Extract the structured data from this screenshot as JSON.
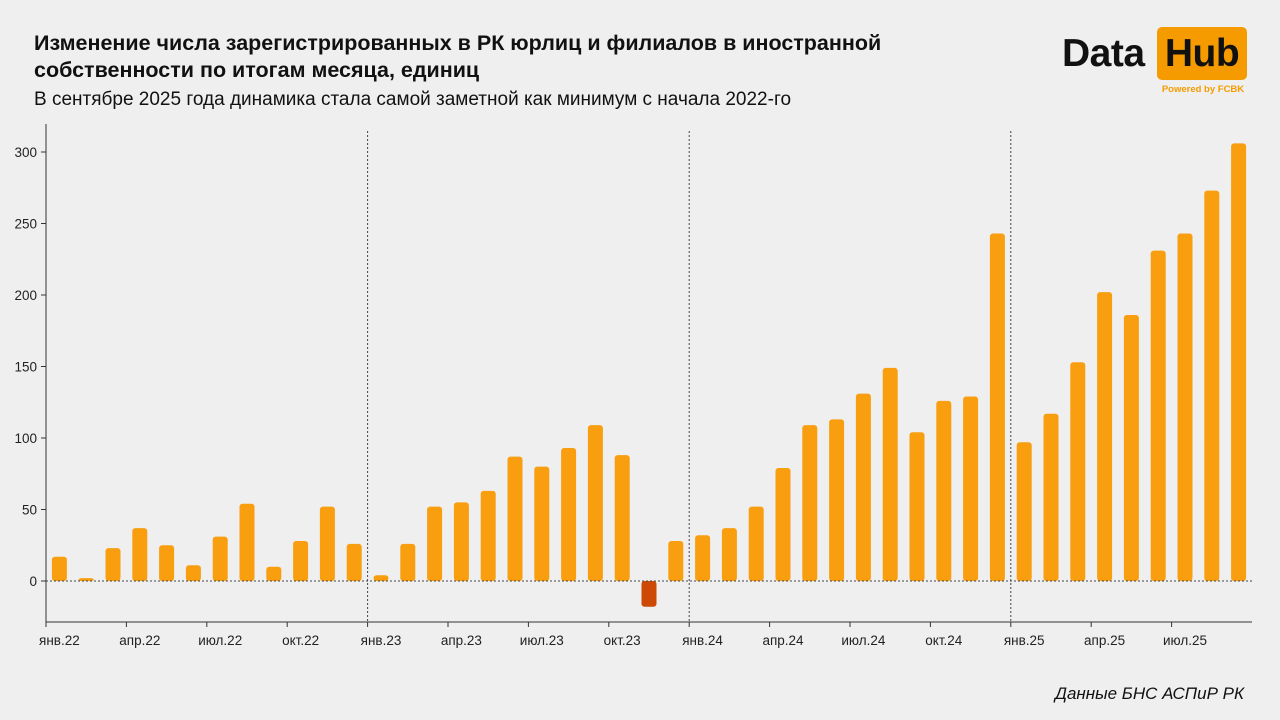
{
  "header": {
    "title": "Изменение числа зарегистрированных в РК юрлиц и филиалов в иностранной собственности по итогам месяца, единиц",
    "subtitle": "В сентябре 2025 года динамика стала самой заметной как минимум с начала 2022-го"
  },
  "logo": {
    "word1": "Data",
    "word2": "Hub",
    "powered": "Powered by FCBK"
  },
  "source": "Данные БНС АСПиР РК",
  "colors": {
    "positive": "#f89e0f",
    "negative": "#cc4a06",
    "background": "#efefef",
    "accent": "#f59b00"
  },
  "chart_data": {
    "type": "bar",
    "title": "Изменение числа зарегистрированных в РК юрлиц и филиалов в иностранной собственности по итогам месяца, единиц",
    "subtitle": "В сентябре 2025 года динамика стала самой заметной как минимум с начала 2022-го",
    "xlabel": "",
    "ylabel": "",
    "ylim": [
      -20,
      310
    ],
    "yticks": [
      0,
      50,
      100,
      150,
      200,
      250,
      300
    ],
    "grid": false,
    "legend": "none",
    "categories": [
      "янв.22",
      "фев.22",
      "мар.22",
      "апр.22",
      "май.22",
      "июн.22",
      "июл.22",
      "авг.22",
      "сен.22",
      "окт.22",
      "ноя.22",
      "дек.22",
      "янв.23",
      "фев.23",
      "мар.23",
      "апр.23",
      "май.23",
      "июн.23",
      "июл.23",
      "авг.23",
      "сен.23",
      "окт.23",
      "ноя.23",
      "дек.23",
      "янв.24",
      "фев.24",
      "мар.24",
      "апр.24",
      "май.24",
      "июн.24",
      "июл.24",
      "авг.24",
      "сен.24",
      "окт.24",
      "ноя.24",
      "дек.24",
      "янв.25",
      "фев.25",
      "мар.25",
      "апр.25",
      "май.25",
      "июн.25",
      "июл.25",
      "авг.25",
      "сен.25"
    ],
    "xtick_labels": [
      {
        "index": 0,
        "label": "янв.22"
      },
      {
        "index": 3,
        "label": "апр.22"
      },
      {
        "index": 6,
        "label": "июл.22"
      },
      {
        "index": 9,
        "label": "окт.22"
      },
      {
        "index": 12,
        "label": "янв.23"
      },
      {
        "index": 15,
        "label": "апр.23"
      },
      {
        "index": 18,
        "label": "июл.23"
      },
      {
        "index": 21,
        "label": "окт.23"
      },
      {
        "index": 24,
        "label": "янв.24"
      },
      {
        "index": 27,
        "label": "апр.24"
      },
      {
        "index": 30,
        "label": "июл.24"
      },
      {
        "index": 33,
        "label": "окт.24"
      },
      {
        "index": 36,
        "label": "янв.25"
      },
      {
        "index": 39,
        "label": "апр.25"
      },
      {
        "index": 42,
        "label": "июл.25"
      }
    ],
    "year_dividers_before_index": [
      12,
      24,
      36
    ],
    "values": [
      17,
      2,
      23,
      37,
      25,
      11,
      31,
      54,
      10,
      28,
      52,
      26,
      4,
      26,
      52,
      55,
      63,
      87,
      80,
      93,
      109,
      88,
      -18,
      28,
      32,
      37,
      52,
      79,
      109,
      113,
      131,
      149,
      104,
      126,
      129,
      243,
      97,
      117,
      153,
      202,
      186,
      231,
      243,
      273,
      306
    ]
  }
}
